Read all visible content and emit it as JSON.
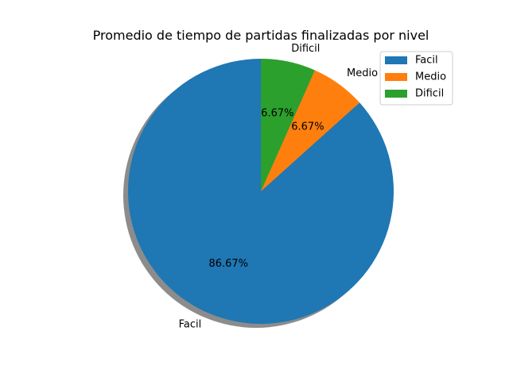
{
  "chart_data": {
    "type": "pie",
    "title": "Promedio de tiempo de partidas finalizadas por nivel",
    "categories": [
      "Facil",
      "Medio",
      "Dificil"
    ],
    "values": [
      86.67,
      6.67,
      6.67
    ],
    "value_labels": [
      "86.67%",
      "6.67%",
      "6.67%"
    ],
    "colors": [
      "#1f77b4",
      "#ff7f0e",
      "#2ca02c"
    ],
    "start_angle_deg": 90,
    "direction": "counterclockwise",
    "shadow": true,
    "legend": {
      "position": "top-right",
      "entries": [
        "Facil",
        "Medio",
        "Dificil"
      ]
    }
  }
}
